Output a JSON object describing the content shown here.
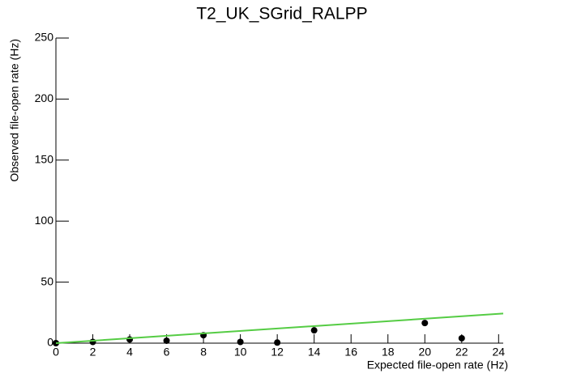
{
  "chart_data": {
    "type": "scatter",
    "title": "T2_UK_SGrid_RALPP",
    "x_label": "Expected file-open rate (Hz)",
    "y_label": "Observed file-open rate (Hz)",
    "xlim": [
      0,
      24.25
    ],
    "ylim": [
      0,
      250
    ],
    "xticks": [
      0,
      2,
      4,
      6,
      8,
      10,
      12,
      14,
      16,
      18,
      20,
      22,
      24
    ],
    "yticks": [
      0,
      50,
      100,
      150,
      200,
      250
    ],
    "series": [
      {
        "color": "#000000",
        "x": [
          0,
          2,
          4,
          6,
          8,
          10,
          12,
          14,
          20,
          22
        ],
        "values": [
          0,
          1,
          3,
          2,
          6.5,
          1,
          0.5,
          10.5,
          16.5,
          4
        ]
      },
      {
        "color": "#55cc44",
        "line": true,
        "x": [
          0,
          24.25
        ],
        "values": [
          0,
          24.25
        ]
      }
    ]
  }
}
